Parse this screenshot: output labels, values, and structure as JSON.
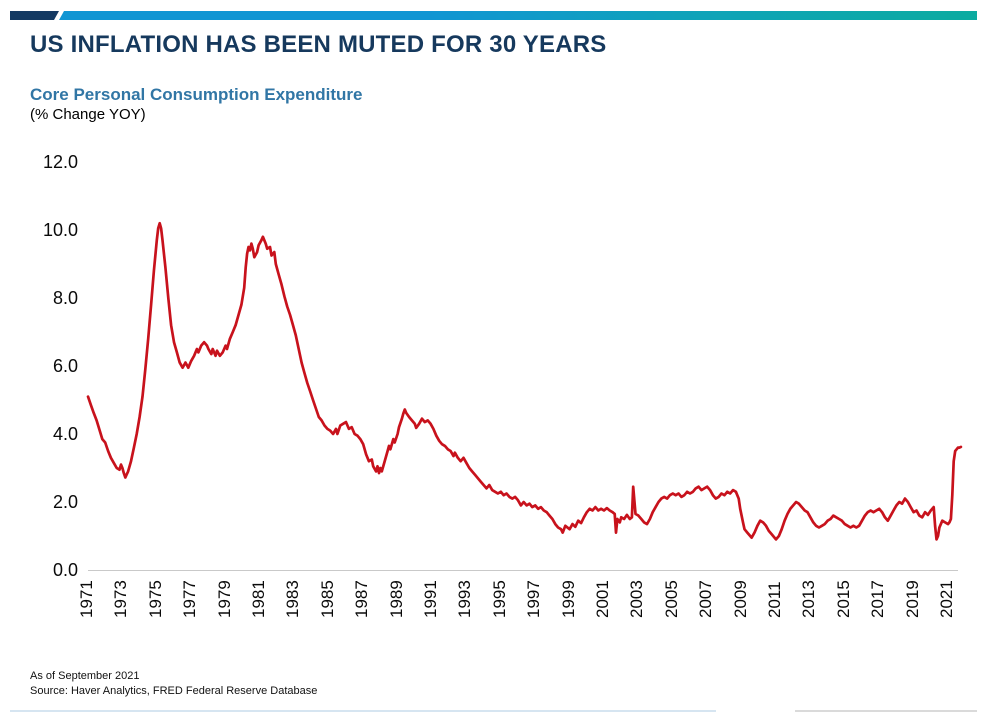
{
  "header": {
    "title": "US INFLATION HAS BEEN MUTED FOR 30 YEARS",
    "subtitle": "Core Personal Consumption Expenditure",
    "units": "(% Change YOY)"
  },
  "footer": {
    "as_of": "As of September 2021",
    "source": "Source: Haver Analytics, FRED Federal Reserve Database"
  },
  "colors": {
    "title_navy": "#16395d",
    "subtitle_blue": "#3176a5",
    "line_red": "#c8121c",
    "bar_navy": "#143a63",
    "bar_blue": "#1095d3",
    "bar_teal": "#0baba0",
    "axis_gray": "#c9c9c9"
  },
  "chart_data": {
    "type": "line",
    "title": "Core Personal Consumption Expenditure",
    "ylabel": "(% Change YOY)",
    "xlabel": "",
    "series_name": "Core PCE inflation, % change year-over-year",
    "legend": "none",
    "grid": false,
    "ylim": [
      0,
      12
    ],
    "x_range": [
      1971,
      2021.75
    ],
    "y_ticks": [
      0,
      2,
      4,
      6,
      8,
      10,
      12
    ],
    "x_ticks": [
      1971,
      1973,
      1975,
      1977,
      1979,
      1981,
      1983,
      1985,
      1987,
      1989,
      1991,
      1993,
      1995,
      1997,
      1999,
      2001,
      2003,
      2005,
      2007,
      2009,
      2011,
      2013,
      2015,
      2017,
      2019,
      2021
    ],
    "points": [
      [
        1971.0,
        5.1
      ],
      [
        1971.17,
        4.85
      ],
      [
        1971.33,
        4.62
      ],
      [
        1971.5,
        4.4
      ],
      [
        1971.67,
        4.12
      ],
      [
        1971.83,
        3.85
      ],
      [
        1972.0,
        3.75
      ],
      [
        1972.17,
        3.5
      ],
      [
        1972.33,
        3.3
      ],
      [
        1972.5,
        3.15
      ],
      [
        1972.67,
        3.0
      ],
      [
        1972.83,
        2.95
      ],
      [
        1972.92,
        3.1
      ],
      [
        1973.0,
        3.0
      ],
      [
        1973.08,
        2.85
      ],
      [
        1973.17,
        2.72
      ],
      [
        1973.33,
        2.9
      ],
      [
        1973.5,
        3.2
      ],
      [
        1973.67,
        3.6
      ],
      [
        1973.83,
        4.0
      ],
      [
        1974.0,
        4.5
      ],
      [
        1974.17,
        5.1
      ],
      [
        1974.33,
        5.9
      ],
      [
        1974.5,
        6.8
      ],
      [
        1974.67,
        7.8
      ],
      [
        1974.83,
        8.8
      ],
      [
        1975.0,
        9.7
      ],
      [
        1975.08,
        10.05
      ],
      [
        1975.17,
        10.2
      ],
      [
        1975.25,
        10.05
      ],
      [
        1975.33,
        9.7
      ],
      [
        1975.5,
        8.9
      ],
      [
        1975.67,
        8.0
      ],
      [
        1975.83,
        7.2
      ],
      [
        1976.0,
        6.7
      ],
      [
        1976.17,
        6.4
      ],
      [
        1976.33,
        6.1
      ],
      [
        1976.5,
        5.95
      ],
      [
        1976.67,
        6.1
      ],
      [
        1976.83,
        5.95
      ],
      [
        1977.0,
        6.15
      ],
      [
        1977.17,
        6.3
      ],
      [
        1977.33,
        6.5
      ],
      [
        1977.42,
        6.4
      ],
      [
        1977.58,
        6.6
      ],
      [
        1977.75,
        6.7
      ],
      [
        1977.92,
        6.6
      ],
      [
        1978.0,
        6.5
      ],
      [
        1978.17,
        6.35
      ],
      [
        1978.25,
        6.5
      ],
      [
        1978.42,
        6.3
      ],
      [
        1978.5,
        6.45
      ],
      [
        1978.67,
        6.3
      ],
      [
        1978.83,
        6.4
      ],
      [
        1979.0,
        6.6
      ],
      [
        1979.08,
        6.5
      ],
      [
        1979.25,
        6.8
      ],
      [
        1979.42,
        7.0
      ],
      [
        1979.58,
        7.2
      ],
      [
        1979.75,
        7.5
      ],
      [
        1979.92,
        7.8
      ],
      [
        1980.08,
        8.3
      ],
      [
        1980.17,
        8.9
      ],
      [
        1980.25,
        9.3
      ],
      [
        1980.33,
        9.5
      ],
      [
        1980.42,
        9.4
      ],
      [
        1980.5,
        9.6
      ],
      [
        1980.58,
        9.45
      ],
      [
        1980.67,
        9.2
      ],
      [
        1980.83,
        9.35
      ],
      [
        1980.92,
        9.55
      ],
      [
        1981.08,
        9.7
      ],
      [
        1981.17,
        9.8
      ],
      [
        1981.33,
        9.6
      ],
      [
        1981.42,
        9.45
      ],
      [
        1981.58,
        9.5
      ],
      [
        1981.67,
        9.25
      ],
      [
        1981.83,
        9.35
      ],
      [
        1981.92,
        9.0
      ],
      [
        1982.08,
        8.7
      ],
      [
        1982.25,
        8.4
      ],
      [
        1982.42,
        8.05
      ],
      [
        1982.58,
        7.75
      ],
      [
        1982.75,
        7.5
      ],
      [
        1982.92,
        7.2
      ],
      [
        1983.08,
        6.9
      ],
      [
        1983.25,
        6.5
      ],
      [
        1983.42,
        6.1
      ],
      [
        1983.58,
        5.8
      ],
      [
        1983.75,
        5.5
      ],
      [
        1983.92,
        5.25
      ],
      [
        1984.08,
        5.0
      ],
      [
        1984.25,
        4.75
      ],
      [
        1984.42,
        4.5
      ],
      [
        1984.58,
        4.4
      ],
      [
        1984.75,
        4.25
      ],
      [
        1984.92,
        4.15
      ],
      [
        1985.08,
        4.1
      ],
      [
        1985.25,
        4.0
      ],
      [
        1985.42,
        4.15
      ],
      [
        1985.5,
        4.0
      ],
      [
        1985.67,
        4.25
      ],
      [
        1985.83,
        4.3
      ],
      [
        1986.0,
        4.35
      ],
      [
        1986.17,
        4.15
      ],
      [
        1986.33,
        4.2
      ],
      [
        1986.5,
        4.0
      ],
      [
        1986.67,
        3.95
      ],
      [
        1986.83,
        3.85
      ],
      [
        1987.0,
        3.7
      ],
      [
        1987.17,
        3.4
      ],
      [
        1987.33,
        3.2
      ],
      [
        1987.5,
        3.25
      ],
      [
        1987.58,
        3.05
      ],
      [
        1987.75,
        2.9
      ],
      [
        1987.83,
        3.05
      ],
      [
        1987.92,
        2.85
      ],
      [
        1988.0,
        3.0
      ],
      [
        1988.08,
        2.9
      ],
      [
        1988.25,
        3.2
      ],
      [
        1988.42,
        3.5
      ],
      [
        1988.5,
        3.65
      ],
      [
        1988.58,
        3.55
      ],
      [
        1988.75,
        3.85
      ],
      [
        1988.83,
        3.75
      ],
      [
        1989.0,
        4.0
      ],
      [
        1989.08,
        4.2
      ],
      [
        1989.25,
        4.45
      ],
      [
        1989.33,
        4.6
      ],
      [
        1989.42,
        4.72
      ],
      [
        1989.5,
        4.62
      ],
      [
        1989.67,
        4.5
      ],
      [
        1989.83,
        4.4
      ],
      [
        1990.0,
        4.3
      ],
      [
        1990.08,
        4.18
      ],
      [
        1990.25,
        4.3
      ],
      [
        1990.42,
        4.45
      ],
      [
        1990.58,
        4.35
      ],
      [
        1990.75,
        4.4
      ],
      [
        1990.92,
        4.3
      ],
      [
        1991.08,
        4.15
      ],
      [
        1991.25,
        3.95
      ],
      [
        1991.42,
        3.8
      ],
      [
        1991.58,
        3.7
      ],
      [
        1991.75,
        3.65
      ],
      [
        1991.92,
        3.55
      ],
      [
        1992.08,
        3.5
      ],
      [
        1992.25,
        3.35
      ],
      [
        1992.33,
        3.45
      ],
      [
        1992.5,
        3.3
      ],
      [
        1992.67,
        3.2
      ],
      [
        1992.83,
        3.3
      ],
      [
        1993.0,
        3.15
      ],
      [
        1993.17,
        3.0
      ],
      [
        1993.33,
        2.9
      ],
      [
        1993.5,
        2.8
      ],
      [
        1993.67,
        2.7
      ],
      [
        1993.83,
        2.6
      ],
      [
        1994.0,
        2.5
      ],
      [
        1994.17,
        2.4
      ],
      [
        1994.33,
        2.5
      ],
      [
        1994.5,
        2.35
      ],
      [
        1994.67,
        2.3
      ],
      [
        1994.83,
        2.25
      ],
      [
        1995.0,
        2.3
      ],
      [
        1995.17,
        2.2
      ],
      [
        1995.33,
        2.25
      ],
      [
        1995.5,
        2.15
      ],
      [
        1995.67,
        2.1
      ],
      [
        1995.83,
        2.15
      ],
      [
        1996.0,
        2.05
      ],
      [
        1996.17,
        1.9
      ],
      [
        1996.33,
        2.0
      ],
      [
        1996.5,
        1.9
      ],
      [
        1996.67,
        1.95
      ],
      [
        1996.83,
        1.85
      ],
      [
        1997.0,
        1.9
      ],
      [
        1997.17,
        1.8
      ],
      [
        1997.33,
        1.85
      ],
      [
        1997.5,
        1.75
      ],
      [
        1997.67,
        1.7
      ],
      [
        1997.83,
        1.6
      ],
      [
        1998.0,
        1.5
      ],
      [
        1998.17,
        1.35
      ],
      [
        1998.33,
        1.25
      ],
      [
        1998.5,
        1.2
      ],
      [
        1998.6,
        1.1
      ],
      [
        1998.75,
        1.3
      ],
      [
        1999.0,
        1.2
      ],
      [
        1999.17,
        1.35
      ],
      [
        1999.33,
        1.27
      ],
      [
        1999.5,
        1.45
      ],
      [
        1999.67,
        1.38
      ],
      [
        1999.83,
        1.55
      ],
      [
        2000.0,
        1.7
      ],
      [
        2000.17,
        1.8
      ],
      [
        2000.33,
        1.75
      ],
      [
        2000.5,
        1.85
      ],
      [
        2000.67,
        1.75
      ],
      [
        2000.83,
        1.8
      ],
      [
        2001.0,
        1.75
      ],
      [
        2001.17,
        1.82
      ],
      [
        2001.33,
        1.75
      ],
      [
        2001.5,
        1.7
      ],
      [
        2001.62,
        1.65
      ],
      [
        2001.7,
        1.1
      ],
      [
        2001.78,
        1.5
      ],
      [
        2001.92,
        1.4
      ],
      [
        2002.0,
        1.55
      ],
      [
        2002.17,
        1.5
      ],
      [
        2002.33,
        1.62
      ],
      [
        2002.5,
        1.5
      ],
      [
        2002.62,
        1.55
      ],
      [
        2002.7,
        2.45
      ],
      [
        2002.83,
        1.65
      ],
      [
        2003.0,
        1.6
      ],
      [
        2003.17,
        1.5
      ],
      [
        2003.33,
        1.4
      ],
      [
        2003.5,
        1.35
      ],
      [
        2003.67,
        1.5
      ],
      [
        2003.83,
        1.7
      ],
      [
        2004.0,
        1.85
      ],
      [
        2004.17,
        2.0
      ],
      [
        2004.33,
        2.1
      ],
      [
        2004.5,
        2.15
      ],
      [
        2004.67,
        2.1
      ],
      [
        2004.83,
        2.2
      ],
      [
        2005.0,
        2.25
      ],
      [
        2005.17,
        2.2
      ],
      [
        2005.33,
        2.25
      ],
      [
        2005.5,
        2.15
      ],
      [
        2005.67,
        2.2
      ],
      [
        2005.83,
        2.3
      ],
      [
        2006.0,
        2.25
      ],
      [
        2006.17,
        2.3
      ],
      [
        2006.33,
        2.4
      ],
      [
        2006.5,
        2.45
      ],
      [
        2006.67,
        2.35
      ],
      [
        2006.83,
        2.4
      ],
      [
        2007.0,
        2.45
      ],
      [
        2007.17,
        2.35
      ],
      [
        2007.33,
        2.2
      ],
      [
        2007.5,
        2.1
      ],
      [
        2007.67,
        2.15
      ],
      [
        2007.83,
        2.25
      ],
      [
        2008.0,
        2.2
      ],
      [
        2008.17,
        2.3
      ],
      [
        2008.33,
        2.25
      ],
      [
        2008.5,
        2.35
      ],
      [
        2008.67,
        2.3
      ],
      [
        2008.83,
        2.1
      ],
      [
        2008.92,
        1.8
      ],
      [
        2009.08,
        1.4
      ],
      [
        2009.17,
        1.2
      ],
      [
        2009.33,
        1.1
      ],
      [
        2009.5,
        1.0
      ],
      [
        2009.58,
        0.95
      ],
      [
        2009.75,
        1.1
      ],
      [
        2009.92,
        1.3
      ],
      [
        2010.08,
        1.45
      ],
      [
        2010.25,
        1.4
      ],
      [
        2010.42,
        1.3
      ],
      [
        2010.58,
        1.15
      ],
      [
        2010.75,
        1.05
      ],
      [
        2010.92,
        0.95
      ],
      [
        2011.0,
        0.9
      ],
      [
        2011.17,
        1.0
      ],
      [
        2011.33,
        1.2
      ],
      [
        2011.5,
        1.45
      ],
      [
        2011.67,
        1.65
      ],
      [
        2011.83,
        1.8
      ],
      [
        2012.0,
        1.9
      ],
      [
        2012.17,
        2.0
      ],
      [
        2012.33,
        1.95
      ],
      [
        2012.5,
        1.85
      ],
      [
        2012.67,
        1.75
      ],
      [
        2012.83,
        1.7
      ],
      [
        2013.0,
        1.55
      ],
      [
        2013.17,
        1.4
      ],
      [
        2013.33,
        1.3
      ],
      [
        2013.5,
        1.25
      ],
      [
        2013.67,
        1.3
      ],
      [
        2013.83,
        1.35
      ],
      [
        2014.0,
        1.45
      ],
      [
        2014.17,
        1.5
      ],
      [
        2014.33,
        1.6
      ],
      [
        2014.5,
        1.55
      ],
      [
        2014.67,
        1.5
      ],
      [
        2014.83,
        1.45
      ],
      [
        2015.0,
        1.35
      ],
      [
        2015.17,
        1.3
      ],
      [
        2015.33,
        1.25
      ],
      [
        2015.5,
        1.3
      ],
      [
        2015.67,
        1.25
      ],
      [
        2015.83,
        1.3
      ],
      [
        2016.0,
        1.45
      ],
      [
        2016.17,
        1.6
      ],
      [
        2016.33,
        1.7
      ],
      [
        2016.5,
        1.75
      ],
      [
        2016.67,
        1.7
      ],
      [
        2016.83,
        1.75
      ],
      [
        2017.0,
        1.8
      ],
      [
        2017.17,
        1.7
      ],
      [
        2017.33,
        1.55
      ],
      [
        2017.5,
        1.45
      ],
      [
        2017.67,
        1.6
      ],
      [
        2017.83,
        1.75
      ],
      [
        2018.0,
        1.9
      ],
      [
        2018.17,
        2.0
      ],
      [
        2018.33,
        1.95
      ],
      [
        2018.5,
        2.1
      ],
      [
        2018.67,
        2.0
      ],
      [
        2018.83,
        1.85
      ],
      [
        2019.0,
        1.7
      ],
      [
        2019.17,
        1.75
      ],
      [
        2019.33,
        1.6
      ],
      [
        2019.5,
        1.55
      ],
      [
        2019.67,
        1.7
      ],
      [
        2019.83,
        1.62
      ],
      [
        2020.0,
        1.75
      ],
      [
        2020.17,
        1.85
      ],
      [
        2020.25,
        1.3
      ],
      [
        2020.33,
        0.9
      ],
      [
        2020.42,
        1.0
      ],
      [
        2020.5,
        1.25
      ],
      [
        2020.67,
        1.45
      ],
      [
        2020.83,
        1.4
      ],
      [
        2021.0,
        1.35
      ],
      [
        2021.08,
        1.4
      ],
      [
        2021.17,
        1.5
      ],
      [
        2021.25,
        2.2
      ],
      [
        2021.33,
        3.2
      ],
      [
        2021.42,
        3.5
      ],
      [
        2021.5,
        3.55
      ],
      [
        2021.58,
        3.6
      ],
      [
        2021.67,
        3.6
      ],
      [
        2021.75,
        3.62
      ]
    ]
  }
}
